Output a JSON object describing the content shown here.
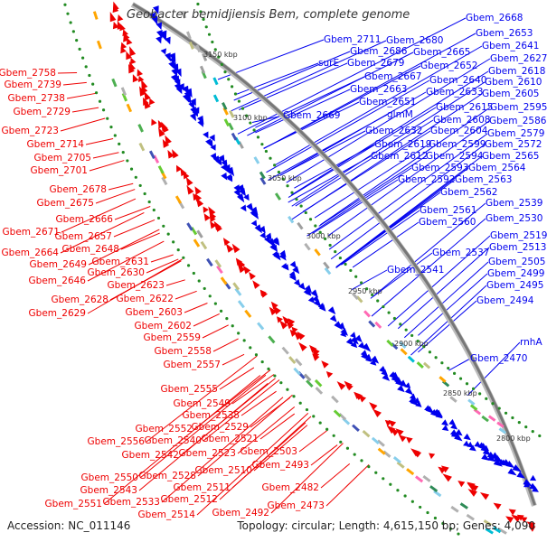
{
  "title": "Geobacter bemidjiensis Bem, complete genome",
  "footer": {
    "accession": "Accession: NC_011146",
    "summary": "Topology: circular; Length: 4,615,150 bp; Genes: 4,090"
  },
  "ticks": [
    "3150 kbp",
    "3100 kbp",
    "3050 kbp",
    "3000 kbp",
    "2950 kbp",
    "2900 kbp",
    "2850 kbp",
    "2800 kbp"
  ],
  "colors": {
    "forward": "#0000ee",
    "reverse": "#ee0000",
    "backbone": "#888888",
    "rna": "#228b22"
  },
  "forward_labels": [
    "Gbem_2668",
    "Gbem_2653",
    "Gbem_2711",
    "Gbem_2680",
    "Gbem_2641",
    "Gbem_2686",
    "Gbem_2665",
    "Gbem_2627",
    "surE",
    "Gbem_2679",
    "Gbem_2652",
    "Gbem_2618",
    "Gbem_2667",
    "Gbem_2640",
    "Gbem_2610",
    "Gbem_2663",
    "Gbem_2633",
    "Gbem_2605",
    "Gbem_2651",
    "Gbem_2615",
    "Gbem_2595",
    "Gbem_2669",
    "glmM",
    "Gbem_2608",
    "Gbem_2586",
    "Gbem_2632",
    "Gbem_2604",
    "Gbem_2579",
    "Gbem_2619",
    "Gbem_2599",
    "Gbem_2572",
    "Gbem_2612",
    "Gbem_2594",
    "Gbem_2565",
    "Gbem_2593",
    "Gbem_2564",
    "Gbem_2592",
    "Gbem_2563",
    "Gbem_2562",
    "Gbem_2561",
    "Gbem_2539",
    "Gbem_2560",
    "Gbem_2530",
    "Gbem_2519",
    "Gbem_2537",
    "Gbem_2513",
    "Gbem_2505",
    "Gbem_2541",
    "Gbem_2499",
    "Gbem_2495",
    "Gbem_2494",
    "rnhA",
    "Gbem_2470"
  ],
  "reverse_labels": [
    "Gbem_2758",
    "Gbem_2739",
    "Gbem_2738",
    "Gbem_2729",
    "Gbem_2723",
    "Gbem_2714",
    "Gbem_2705",
    "Gbem_2701",
    "Gbem_2678",
    "Gbem_2675",
    "Gbem_2666",
    "Gbem_2671",
    "Gbem_2657",
    "Gbem_2664",
    "Gbem_2648",
    "Gbem_2631",
    "Gbem_2649",
    "Gbem_2630",
    "Gbem_2646",
    "Gbem_2623",
    "Gbem_2628",
    "Gbem_2622",
    "Gbem_2629",
    "Gbem_2603",
    "Gbem_2602",
    "Gbem_2559",
    "Gbem_2558",
    "Gbem_2557",
    "Gbem_2555",
    "Gbem_2549",
    "Gbem_2538",
    "Gbem_2552",
    "Gbem_2529",
    "Gbem_2556",
    "Gbem_2540",
    "Gbem_2521",
    "Gbem_2542",
    "Gbem_2523",
    "Gbem_2503",
    "Gbem_2493",
    "Gbem_2550",
    "Gbem_2528",
    "Gbem_2510",
    "Gbem_2543",
    "Gbem_2511",
    "Gbem_2482",
    "Gbem_2551",
    "Gbem_2533",
    "Gbem_2512",
    "Gbem_2473",
    "Gbem_2514",
    "Gbem_2492"
  ]
}
